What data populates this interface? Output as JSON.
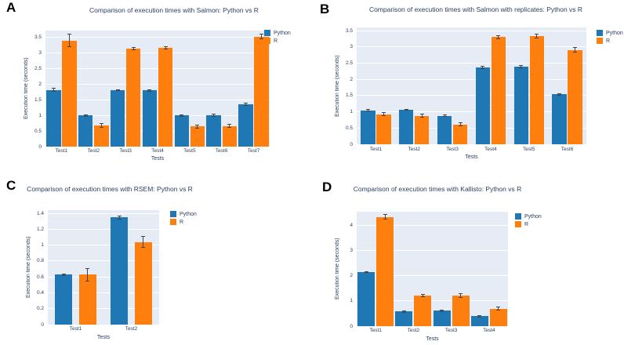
{
  "figure": {
    "background": "#ffffff",
    "text_color": "#2a3f5f",
    "plot_bg_color": "#e5ecf6",
    "grid_color": "#ffffff",
    "error_bar_color": "#444444",
    "python_color": "#1f77b4",
    "r_color": "#ff7f0e"
  },
  "chart_data": [
    {
      "panel": "A",
      "type": "bar",
      "title": "Comparison of execution times with Salmon: Python vs R",
      "xlabel": "Tests",
      "ylabel": "Execution time (seconds)",
      "categories": [
        "Test1",
        "Test2",
        "Test3",
        "Test4",
        "Test5",
        "Test6",
        "Test7"
      ],
      "series": [
        {
          "name": "Python",
          "color": "#1f77b4",
          "values": [
            1.82,
            1.0,
            1.81,
            1.8,
            1.0,
            1.01,
            1.36
          ],
          "errors": [
            0.05,
            0.02,
            0.02,
            0.02,
            0.03,
            0.03,
            0.03
          ]
        },
        {
          "name": "R",
          "color": "#ff7f0e",
          "values": [
            3.4,
            0.68,
            3.14,
            3.16,
            0.65,
            0.66,
            3.53
          ],
          "errors": [
            0.2,
            0.06,
            0.04,
            0.04,
            0.05,
            0.05,
            0.07
          ]
        }
      ],
      "yticks": [
        0,
        0.5,
        1,
        1.5,
        2,
        2.5,
        3,
        3.5
      ],
      "ylim": [
        0,
        3.72
      ],
      "grid": true,
      "legend": [
        "Python",
        "R"
      ],
      "legend_position": "top-right-outside"
    },
    {
      "panel": "B",
      "type": "bar",
      "title": "Comparison of execution times with Salmon with replicates: Python vs R",
      "xlabel": "Tests",
      "ylabel": "Execution time (seconds)",
      "categories": [
        "Test1",
        "Test2",
        "Test3",
        "Test4",
        "Test5",
        "Test6"
      ],
      "series": [
        {
          "name": "Python",
          "color": "#1f77b4",
          "values": [
            1.05,
            1.06,
            0.88,
            2.37,
            2.39,
            1.54
          ],
          "errors": [
            0.02,
            0.02,
            0.02,
            0.03,
            0.03,
            0.02
          ]
        },
        {
          "name": "R",
          "color": "#ff7f0e",
          "values": [
            0.92,
            0.88,
            0.61,
            3.3,
            3.33,
            2.91
          ],
          "errors": [
            0.05,
            0.05,
            0.05,
            0.05,
            0.06,
            0.07
          ]
        }
      ],
      "yticks": [
        0,
        0.5,
        1,
        1.5,
        2,
        2.5,
        3,
        3.5
      ],
      "ylim": [
        0,
        3.6
      ],
      "grid": true,
      "legend": [
        "Python",
        "R"
      ],
      "legend_position": "top-right-outside"
    },
    {
      "panel": "C",
      "type": "bar",
      "title": "Comparison of execution times with RSEM: Python vs R",
      "xlabel": "Tests",
      "ylabel": "Execution time (seconds)",
      "categories": [
        "Test1",
        "Test2"
      ],
      "series": [
        {
          "name": "Python",
          "color": "#1f77b4",
          "values": [
            0.63,
            1.35
          ],
          "errors": [
            0.01,
            0.02
          ]
        },
        {
          "name": "R",
          "color": "#ff7f0e",
          "values": [
            0.63,
            1.04
          ],
          "errors": [
            0.08,
            0.07
          ]
        }
      ],
      "yticks": [
        0,
        0.2,
        0.4,
        0.6,
        0.8,
        1,
        1.2,
        1.4
      ],
      "ylim": [
        0,
        1.44
      ],
      "grid": true,
      "legend": [
        "Python",
        "R"
      ],
      "legend_position": "top-right-outside"
    },
    {
      "panel": "D",
      "type": "bar",
      "title": "Comparison of execution times with Kallisto: Python vs R",
      "xlabel": "Tests",
      "ylabel": "Execution time (seconds)",
      "categories": [
        "Test1",
        "Test2",
        "Test3",
        "Test4"
      ],
      "series": [
        {
          "name": "Python",
          "color": "#1f77b4",
          "values": [
            2.15,
            0.58,
            0.62,
            0.39
          ],
          "errors": [
            0.03,
            0.03,
            0.03,
            0.02
          ]
        },
        {
          "name": "R",
          "color": "#ff7f0e",
          "values": [
            4.34,
            1.22,
            1.22,
            0.7
          ],
          "errors": [
            0.1,
            0.05,
            0.08,
            0.05
          ]
        }
      ],
      "yticks": [
        0,
        1,
        2,
        3,
        4
      ],
      "ylim": [
        0,
        4.55
      ],
      "grid": true,
      "legend": [
        "Python",
        "R"
      ],
      "legend_position": "top-right-outside"
    }
  ]
}
